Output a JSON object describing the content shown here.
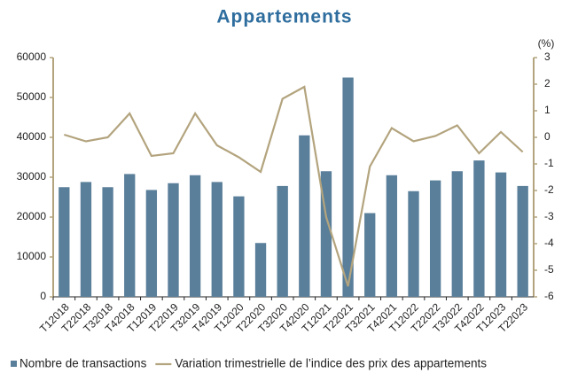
{
  "chart_data": {
    "type": "bar-line",
    "title": "Appartements",
    "categories": [
      "T12018",
      "T22018",
      "T32018",
      "T42018",
      "T12019",
      "T22019",
      "T32019",
      "T42019",
      "T12020",
      "T22020",
      "T32020",
      "T42020",
      "T12021",
      "T22021",
      "T32021",
      "T42021",
      "T12022",
      "T22022",
      "T32022",
      "T42022",
      "T12023",
      "T22023"
    ],
    "series": [
      {
        "name": "Nombre de transactions",
        "type": "bar",
        "color": "#5a7f9a",
        "values": [
          27500,
          28800,
          27500,
          30800,
          26800,
          28500,
          30500,
          28800,
          25200,
          13500,
          27800,
          40500,
          31500,
          55000,
          21000,
          30500,
          26500,
          29200,
          31500,
          34200,
          31200,
          27800
        ]
      },
      {
        "name": "Variation trimestrielle de l’indice des prix des appartements",
        "type": "line",
        "axis": "y2",
        "color": "#b3a47e",
        "values": [
          0.1,
          -0.15,
          0,
          0.9,
          -0.7,
          -0.6,
          0.9,
          -0.3,
          -0.75,
          -1.3,
          1.45,
          1.9,
          -3.0,
          -5.6,
          -1.1,
          0.35,
          -0.15,
          0.05,
          0.45,
          -0.6,
          0.2,
          -0.55
        ]
      }
    ],
    "ylim": [
      0,
      60000
    ],
    "yticks": [
      0,
      10000,
      20000,
      30000,
      40000,
      50000,
      60000
    ],
    "y2lim": [
      -6,
      3
    ],
    "y2ticks": [
      -6,
      -5,
      -4,
      -3,
      -2,
      -1,
      0,
      1,
      2,
      3
    ],
    "y2label": "(%)",
    "axis_color": "#b3a47e"
  }
}
